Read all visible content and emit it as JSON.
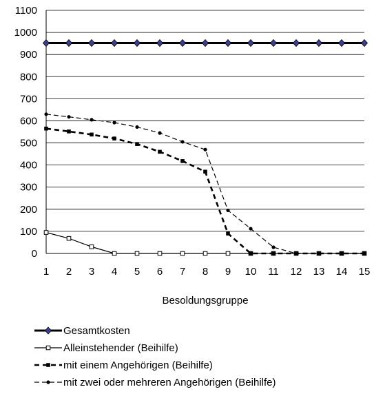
{
  "chart_data": {
    "type": "line",
    "xlabel": "Besoldungsgruppe",
    "ylabel": "",
    "ylim": [
      0,
      1100
    ],
    "yticks": [
      0,
      100,
      200,
      300,
      400,
      500,
      600,
      700,
      800,
      900,
      1000,
      1100
    ],
    "x": [
      1,
      2,
      3,
      4,
      5,
      6,
      7,
      8,
      9,
      10,
      11,
      12,
      13,
      14,
      15
    ],
    "grid": "horizontal",
    "legend_position": "bottom",
    "series": [
      {
        "name": "Gesamtkosten",
        "style": "solid-thick",
        "marker": "diamond",
        "color": "#000000",
        "marker_color": "#3a3f8f",
        "values": [
          952,
          952,
          952,
          952,
          952,
          952,
          952,
          952,
          952,
          952,
          952,
          952,
          952,
          952,
          952
        ]
      },
      {
        "name": "Alleinstehender (Beihilfe)",
        "style": "solid-thin",
        "marker": "open-square",
        "color": "#000000",
        "values": [
          95,
          68,
          30,
          0,
          0,
          0,
          0,
          0,
          0,
          0,
          0,
          0,
          0,
          0,
          0
        ]
      },
      {
        "name": "mit einem Angehörigen (Beihilfe)",
        "style": "dashed-thick",
        "marker": "square",
        "color": "#000000",
        "values": [
          565,
          552,
          538,
          520,
          495,
          460,
          418,
          370,
          90,
          0,
          0,
          0,
          0,
          0,
          0
        ]
      },
      {
        "name": "mit zwei oder mehreren Angehörigen (Beihilfe)",
        "style": "dashed-thin",
        "marker": "dot",
        "color": "#000000",
        "values": [
          630,
          618,
          605,
          592,
          572,
          545,
          505,
          470,
          195,
          112,
          28,
          0,
          0,
          0,
          0
        ]
      }
    ]
  }
}
